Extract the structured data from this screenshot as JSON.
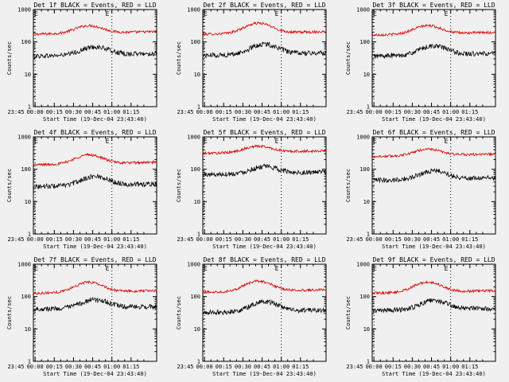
{
  "colors": {
    "background": "#f0f0f0",
    "events": "#000000",
    "lld": "#dd0000",
    "axes": "#000000"
  },
  "chart_data": [
    {
      "type": "line",
      "title": "Det 1f BLACK = Events, RED = LLD",
      "xlabel": "Start Time (19-Dec-04 23:43:40)",
      "ylabel": "Counts/sec",
      "yscale": "log",
      "ylim": [
        1,
        1000
      ],
      "yticks": [
        "1",
        "10",
        "100",
        "1000"
      ],
      "xticks": [
        "23:45",
        "00:00",
        "00:15",
        "00:30",
        "00:45",
        "01:00",
        "01:15"
      ],
      "markers": [
        "E",
        "E"
      ],
      "series": [
        {
          "name": "LLD",
          "color": "#dd0000",
          "baseline": 190,
          "peak": 320,
          "bump": 0.45
        },
        {
          "name": "Events",
          "color": "#000000",
          "baseline": 40,
          "peak": 70,
          "bump": 0.5
        }
      ],
      "grid": false
    },
    {
      "type": "line",
      "title": "Det 2f BLACK = Events, RED = LLD",
      "xlabel": "Start Time (19-Dec-04 23:43:40)",
      "ylabel": "Counts/sec",
      "yscale": "log",
      "ylim": [
        1,
        1000
      ],
      "yticks": [
        "1",
        "10",
        "100",
        "1000"
      ],
      "xticks": [
        "23:45",
        "00:00",
        "00:15",
        "00:30",
        "00:45",
        "01:00",
        "01:15"
      ],
      "markers": [
        "E",
        "E"
      ],
      "series": [
        {
          "name": "LLD",
          "color": "#dd0000",
          "baseline": 190,
          "peak": 380,
          "bump": 0.45
        },
        {
          "name": "Events",
          "color": "#000000",
          "baseline": 42,
          "peak": 85,
          "bump": 0.5
        }
      ],
      "grid": false
    },
    {
      "type": "line",
      "title": "Det 3f BLACK = Events, RED = LLD",
      "xlabel": "Start Time (19-Dec-04 23:43:40)",
      "ylabel": "Counts/sec",
      "yscale": "log",
      "ylim": [
        1,
        1000
      ],
      "yticks": [
        "1",
        "10",
        "100",
        "1000"
      ],
      "xticks": [
        "23:45",
        "00:00",
        "00:15",
        "00:30",
        "00:45",
        "01:00",
        "01:15"
      ],
      "markers": [
        "E",
        "E"
      ],
      "series": [
        {
          "name": "LLD",
          "color": "#dd0000",
          "baseline": 180,
          "peak": 320,
          "bump": 0.45
        },
        {
          "name": "Events",
          "color": "#000000",
          "baseline": 40,
          "peak": 75,
          "bump": 0.5
        }
      ],
      "grid": false
    },
    {
      "type": "line",
      "title": "Det 4f BLACK = Events, RED = LLD",
      "xlabel": "Start Time (19-Dec-04 23:43:40)",
      "ylabel": "Counts/sec",
      "yscale": "log",
      "ylim": [
        1,
        1000
      ],
      "yticks": [
        "1",
        "10",
        "100",
        "1000"
      ],
      "xticks": [
        "23:45",
        "00:00",
        "00:15",
        "00:30",
        "00:45",
        "01:00",
        "01:15"
      ],
      "markers": [
        "E",
        "E"
      ],
      "series": [
        {
          "name": "LLD",
          "color": "#dd0000",
          "baseline": 150,
          "peak": 280,
          "bump": 0.45
        },
        {
          "name": "Events",
          "color": "#000000",
          "baseline": 32,
          "peak": 60,
          "bump": 0.5
        }
      ],
      "grid": false
    },
    {
      "type": "line",
      "title": "Det 5f BLACK = Events, RED = LLD",
      "xlabel": "Start Time (19-Dec-04 23:43:40)",
      "ylabel": "Counts/sec",
      "yscale": "log",
      "ylim": [
        1,
        1000
      ],
      "yticks": [
        "1",
        "10",
        "100",
        "1000"
      ],
      "xticks": [
        "23:45",
        "00:00",
        "00:15",
        "00:30",
        "00:45",
        "01:00",
        "01:15"
      ],
      "markers": [
        "E",
        "E"
      ],
      "series": [
        {
          "name": "LLD",
          "color": "#dd0000",
          "baseline": 340,
          "peak": 520,
          "bump": 0.45
        },
        {
          "name": "Events",
          "color": "#000000",
          "baseline": 75,
          "peak": 120,
          "bump": 0.5
        }
      ],
      "grid": false
    },
    {
      "type": "line",
      "title": "Det 6f BLACK = Events, RED = LLD",
      "xlabel": "Start Time (19-Dec-04 23:43:40)",
      "ylabel": "Counts/sec",
      "yscale": "log",
      "ylim": [
        1,
        1000
      ],
      "yticks": [
        "1",
        "10",
        "100",
        "1000"
      ],
      "xticks": [
        "23:45",
        "00:00",
        "00:15",
        "00:30",
        "00:45",
        "01:00",
        "01:15"
      ],
      "markers": [
        "E",
        "E"
      ],
      "series": [
        {
          "name": "LLD",
          "color": "#dd0000",
          "baseline": 270,
          "peak": 420,
          "bump": 0.45
        },
        {
          "name": "Events",
          "color": "#000000",
          "baseline": 50,
          "peak": 90,
          "bump": 0.5
        }
      ],
      "grid": false
    },
    {
      "type": "line",
      "title": "Det 7f BLACK = Events, RED = LLD",
      "xlabel": "Start Time (19-Dec-04 23:43:40)",
      "ylabel": "Counts/sec",
      "yscale": "log",
      "ylim": [
        1,
        1000
      ],
      "yticks": [
        "1",
        "10",
        "100",
        "1000"
      ],
      "xticks": [
        "23:45",
        "00:00",
        "00:15",
        "00:30",
        "00:45",
        "01:00",
        "01:15"
      ],
      "markers": [
        "E",
        "E"
      ],
      "series": [
        {
          "name": "LLD",
          "color": "#dd0000",
          "baseline": 140,
          "peak": 280,
          "bump": 0.45
        },
        {
          "name": "Events",
          "color": "#000000",
          "baseline": 45,
          "peak": 80,
          "bump": 0.5
        }
      ],
      "grid": false
    },
    {
      "type": "line",
      "title": "Det 8f BLACK = Events, RED = LLD",
      "xlabel": "Start Time (19-Dec-04 23:43:40)",
      "ylabel": "Counts/sec",
      "yscale": "log",
      "ylim": [
        1,
        1000
      ],
      "yticks": [
        "1",
        "10",
        "100",
        "1000"
      ],
      "xticks": [
        "23:45",
        "00:00",
        "00:15",
        "00:30",
        "00:45",
        "01:00",
        "01:15"
      ],
      "markers": [
        "E",
        "E"
      ],
      "series": [
        {
          "name": "LLD",
          "color": "#dd0000",
          "baseline": 150,
          "peak": 300,
          "bump": 0.45
        },
        {
          "name": "Events",
          "color": "#000000",
          "baseline": 35,
          "peak": 70,
          "bump": 0.5
        }
      ],
      "grid": false
    },
    {
      "type": "line",
      "title": "Det 9f BLACK = Events, RED = LLD",
      "xlabel": "Start Time (19-Dec-04 23:43:40)",
      "ylabel": "Counts/sec",
      "yscale": "log",
      "ylim": [
        1,
        1000
      ],
      "yticks": [
        "1",
        "10",
        "100",
        "1000"
      ],
      "xticks": [
        "23:45",
        "00:00",
        "00:15",
        "00:30",
        "00:45",
        "01:00",
        "01:15"
      ],
      "markers": [
        "E",
        "E"
      ],
      "series": [
        {
          "name": "LLD",
          "color": "#dd0000",
          "baseline": 140,
          "peak": 280,
          "bump": 0.45
        },
        {
          "name": "Events",
          "color": "#000000",
          "baseline": 40,
          "peak": 75,
          "bump": 0.5
        }
      ],
      "grid": false
    }
  ]
}
